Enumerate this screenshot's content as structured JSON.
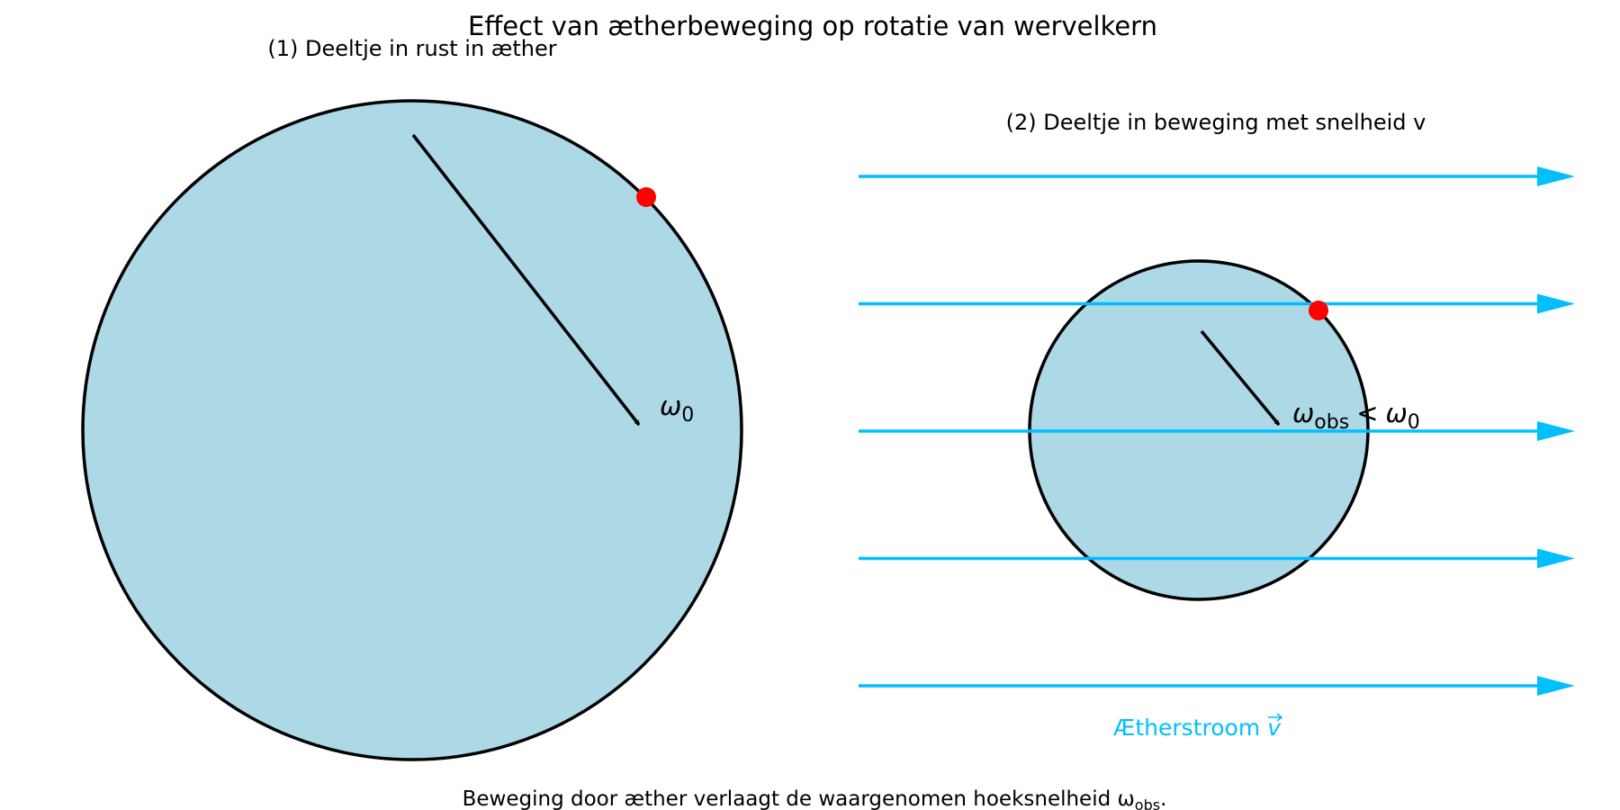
{
  "figure": {
    "title": "Effect van ætherbeweging op rotatie van wervelkern",
    "caption": "Beweging door æther verlaagt de waargenomen hoeksnelheid ω",
    "caption_sub": "obs",
    "caption_end": "."
  },
  "panel_rest": {
    "title": "(1) Deeltje in rust in æther",
    "omega_symbol": "ω",
    "omega_sub": "0"
  },
  "panel_moving": {
    "title": "(2) Deeltje in beweging met snelheid v",
    "omega_symbol": "ω",
    "omega_sub": "obs",
    "less_than": "<",
    "omega_ref_symbol": "ω",
    "omega_ref_sub": "0",
    "stream_label": "Ætherstroom",
    "stream_vector": "v",
    "stream_line_count": 5
  },
  "colors": {
    "disk_fill": "#add8e6",
    "outline": "#000000",
    "marker": "#ff0000",
    "stream": "#00bfff",
    "background": "#ffffff"
  }
}
